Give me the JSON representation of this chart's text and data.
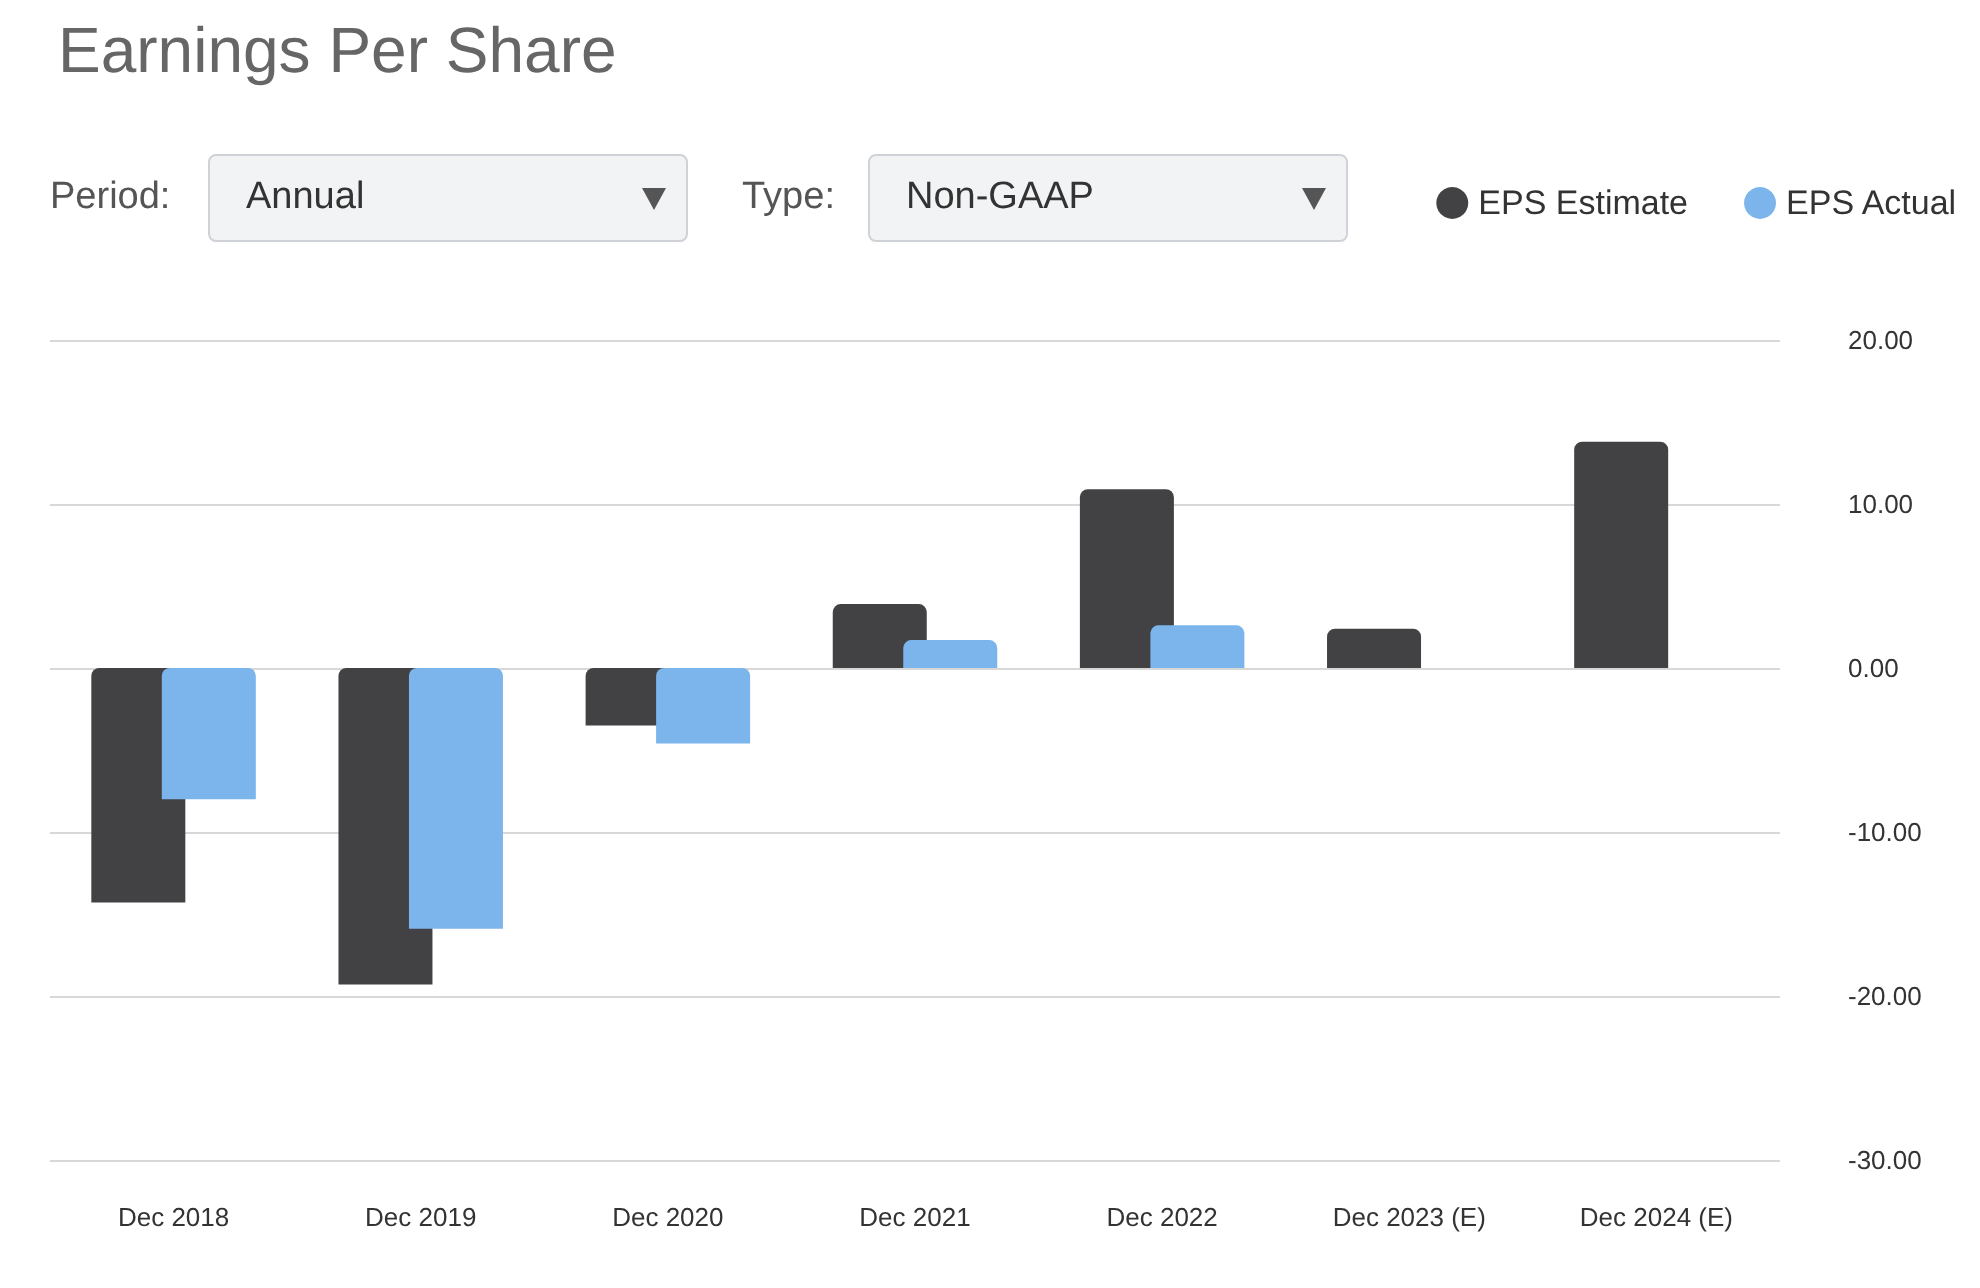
{
  "chart_data": {
    "type": "bar",
    "title": "Earnings Per Share",
    "categories": [
      "Dec 2018",
      "Dec 2019",
      "Dec 2020",
      "Dec 2021",
      "Dec 2022",
      "Dec 2023 (E)",
      "Dec 2024 (E)"
    ],
    "series": [
      {
        "name": "EPS Estimate",
        "color": "#424245",
        "values": [
          -14.3,
          -19.3,
          -3.5,
          3.9,
          10.9,
          2.4,
          13.8
        ]
      },
      {
        "name": "EPS Actual",
        "color": "#7cb5ec",
        "values": [
          -8.0,
          -15.9,
          -4.6,
          1.7,
          2.6,
          null,
          null
        ]
      }
    ],
    "ylim": [
      -30,
      20
    ],
    "yticks": [
      {
        "value": -30,
        "label": "-30.00"
      },
      {
        "value": -20,
        "label": "-20.00"
      },
      {
        "value": -10,
        "label": "-10.00"
      },
      {
        "value": 0,
        "label": "0.00"
      },
      {
        "value": 10,
        "label": "10.00"
      },
      {
        "value": 20,
        "label": "20.00"
      }
    ],
    "grid": "y",
    "legend": "top right",
    "annotations": [
      "Period:",
      "Annual",
      "Type:",
      "Non-GAAP"
    ]
  }
}
